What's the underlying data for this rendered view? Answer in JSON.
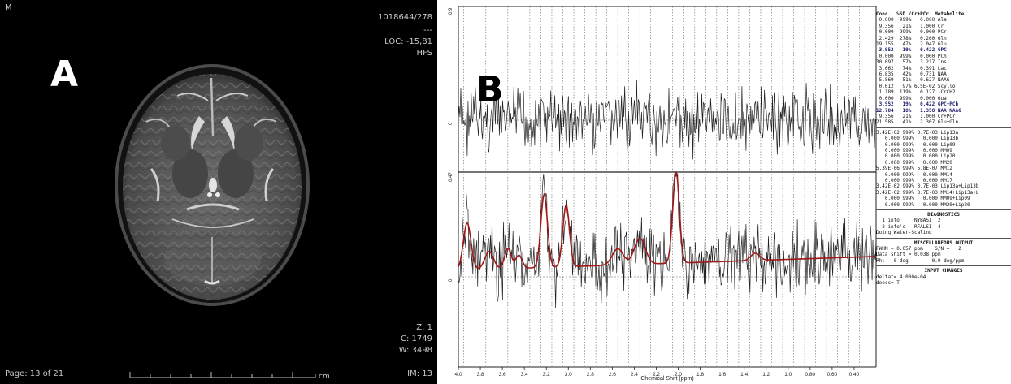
{
  "panel_a": {
    "letter": "A",
    "corner_tl": "M",
    "corner_tr_id": "1018644/278",
    "corner_tr_dots": "---",
    "loc": "LOC: -15,81",
    "hfs": "HFS",
    "z": "Z: 1",
    "c": "C: 1749",
    "w": "W: 3498",
    "page": "Page: 13 of 21",
    "im": "IM: 13",
    "ruler_unit": "cm"
  },
  "panel_b": {
    "letter": "B",
    "x_axis_title": "Chemical Shift (ppm)",
    "x_ticks": [
      "4.0",
      "3.8",
      "3.6",
      "3.4",
      "3.2",
      "3.0",
      "2.8",
      "2.6",
      "2.4",
      "2.2",
      "2.0",
      "1.8",
      "1.6",
      "1.4",
      "1.2",
      "1.0",
      "0.80",
      "0.60",
      "0.40"
    ],
    "top_plot_y_ticks": [
      "0.9",
      "0"
    ],
    "bottom_plot_y_ticks": [
      "0.47",
      "0"
    ],
    "table_header": "Conc.  %SD /Cr+PCr  Metabolite",
    "metabolites": [
      {
        "text": " 0.000  999%   0.000 Ala",
        "bold": false
      },
      {
        "text": " 9.356   21%   1.000 Cr",
        "bold": false
      },
      {
        "text": " 0.000  999%   0.000 PCr",
        "bold": false
      },
      {
        "text": " 2.429  278%   0.260 Gln",
        "bold": false
      },
      {
        "text": "19.155   47%   2.047 Glu",
        "bold": false
      },
      {
        "text": " 3.952   19%   0.422 GPC",
        "bold": true
      },
      {
        "text": " 0.000  999%   0.000 PCh",
        "bold": false
      },
      {
        "text": "30.097   57%   3.217 Ins",
        "bold": false
      },
      {
        "text": " 3.662   74%   0.391 Lac",
        "bold": false
      },
      {
        "text": " 6.835   42%   0.731 NAA",
        "bold": false
      },
      {
        "text": " 5.869   51%   0.627 NAAG",
        "bold": false
      },
      {
        "text": " 0.612   97% 6.5E-02 Scyllo",
        "bold": false
      },
      {
        "text": " 1.189  119%   0.127 -CrCH2",
        "bold": false
      },
      {
        "text": " 0.000  999%   0.000 Gua",
        "bold": false
      },
      {
        "text": " 3.952   19%   0.422 GPC+PCh",
        "bold": true
      },
      {
        "text": "12.704   18%   1.358 NAA+NAAG",
        "bold": true
      },
      {
        "text": " 9.356   21%   1.000 Cr+PCr",
        "bold": false
      },
      {
        "text": "21.585   41%   2.307 Glu+Gln",
        "bold": false
      }
    ],
    "lipids": [
      "3.42E-02 999% 3.7E-03 Lip13a",
      "   0.000 999%   0.000 Lip13b",
      "   0.000 999%   0.000 Lip09",
      "   0.000 999%   0.000 MM09",
      "   0.000 999%   0.000 Lip20",
      "   0.000 999%   0.000 MM20",
      "5.39E-06 999% 5.8E-07 MM12",
      "   0.000 999%   0.000 MM14",
      "   0.000 999%   0.000 MM17",
      "3.42E-02 999% 3.7E-03 Lip13a+Lip13b",
      "3.42E-02 999% 3.7E-03 MM14+Lip13a+L",
      "   0.000 999%   0.000 MM09+Lip09",
      "   0.000 999%   0.000 MM20+Lip20"
    ],
    "diagnostics_title": "DIAGNOSTICS",
    "diagnostics": [
      "  1 info     NYBASI  2",
      "  2 info's   RFALSI  4",
      "Doing Water-Scaling"
    ],
    "misc_title": "MISCELLANEOUS OUTPUT",
    "misc": [
      "FWHM = 0.057 ppm    S/N =   2",
      "Data shift = 0.038 ppm",
      "Ph:   0 deg        0.0 deg/ppm"
    ],
    "input_title": "INPUT CHANGES",
    "input": [
      "deltat= 4.000e-04",
      "doecc= T"
    ],
    "colors": {
      "fit": "#a01818",
      "trace": "#222222",
      "grid": "#444444"
    }
  }
}
